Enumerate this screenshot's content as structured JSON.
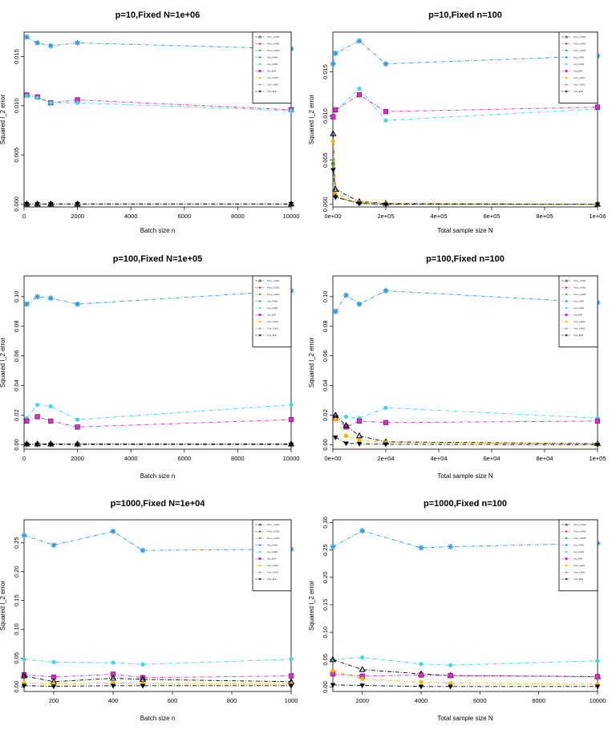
{
  "figure": {
    "legend_labels": [
      "Proxy_GHM1",
      "Proxy_GHM2",
      "Proxy_GHM3",
      "Avg_GHM1",
      "Avg_GHM2",
      "Avg_BHP",
      "Twst_GHM1",
      "Twst_GHM2",
      "Twst_BHP"
    ]
  },
  "chart_data": [
    {
      "type": "line",
      "title": "p=10,Fixed N=1e+06",
      "xlabel": "Batch size n",
      "ylabel": "Squared l_2 error",
      "xlim": [
        0,
        10000
      ],
      "ylim": [
        -0.0003,
        0.0175
      ],
      "xticks": [
        0,
        2000,
        4000,
        6000,
        8000,
        10000
      ],
      "xtick_labels": [
        "0",
        "2000",
        "4000",
        "6000",
        "8000",
        "10000"
      ],
      "yticks": [
        0,
        0.005,
        0.01,
        0.015
      ],
      "ytick_labels": [
        "0.000",
        "0.005",
        "0.010",
        "0.015"
      ],
      "x": [
        100,
        500,
        1000,
        2000,
        10000
      ],
      "series": [
        {
          "name": "Avg_GHM1",
          "color": "#2e9ae0",
          "marker": "star",
          "values": [
            0.017,
            0.0164,
            0.0161,
            0.0164,
            0.0158
          ]
        },
        {
          "name": "Avg_BHP",
          "color": "#d630c8",
          "marker": "box",
          "values": [
            0.0111,
            0.0109,
            0.0103,
            0.0106,
            0.0096
          ]
        },
        {
          "name": "Avg_GHM2",
          "color": "#3ed8e8",
          "marker": "dot",
          "values": [
            0.011,
            0.0108,
            0.0103,
            0.0103,
            0.0095
          ]
        },
        {
          "name": "Proxy_GHM1",
          "color": "#000000",
          "marker": "tri",
          "values": [
            0.0,
            0.0,
            0.0,
            0.0,
            0.0
          ]
        },
        {
          "name": "Twst_BHP",
          "color": "#000000",
          "marker": "tri-down",
          "values": [
            0.0,
            0.0,
            0.0,
            0.0,
            0.0
          ]
        }
      ]
    },
    {
      "type": "line",
      "title": "p=10,Fixed n=100",
      "xlabel": "Total sample size N",
      "ylabel": "Squared l_2 error",
      "xlim": [
        0,
        1000000
      ],
      "ylim": [
        -0.0003,
        0.0195
      ],
      "xticks": [
        0,
        200000,
        400000,
        600000,
        800000,
        1000000
      ],
      "xtick_labels": [
        "0e+00",
        "2e+05",
        "4e+05",
        "6e+05",
        "8e+05",
        "1e+06"
      ],
      "yticks": [
        0,
        0.005,
        0.01,
        0.015
      ],
      "ytick_labels": [
        "0.000",
        "0.005",
        "0.010",
        "0.015"
      ],
      "x": [
        1000,
        10000,
        100000,
        200000,
        1000000
      ],
      "series": [
        {
          "name": "Avg_GHM1",
          "color": "#2e9ae0",
          "marker": "star",
          "values": [
            0.0159,
            0.0171,
            0.0185,
            0.0159,
            0.0168
          ]
        },
        {
          "name": "Avg_GHM2",
          "color": "#3ed8e8",
          "marker": "dot",
          "values": [
            0.0098,
            0.0106,
            0.0131,
            0.0095,
            0.0108
          ]
        },
        {
          "name": "Avg_BHP",
          "color": "#d630c8",
          "marker": "box",
          "values": [
            0.0099,
            0.0107,
            0.0124,
            0.0105,
            0.011
          ]
        },
        {
          "name": "Proxy_GHM1",
          "color": "#000000",
          "marker": "tri",
          "values": [
            0.008,
            0.0017,
            0.0003,
            0.0001,
            0.0
          ]
        },
        {
          "name": "Twst_GHM1",
          "color": "#f2b800",
          "marker": "dot",
          "values": [
            0.0071,
            0.0012,
            0.0002,
            0.0001,
            0.0
          ]
        },
        {
          "name": "Proxy_GHM3",
          "color": "#5c8a2e",
          "marker": "dot",
          "values": [
            0.0046,
            0.0009,
            0.0001,
            0.0,
            0.0
          ]
        },
        {
          "name": "Twst_BHP",
          "color": "#000000",
          "marker": "tri-down",
          "values": [
            0.0039,
            0.0008,
            0.0001,
            0.0,
            0.0
          ]
        }
      ]
    },
    {
      "type": "line",
      "title": "p=100,Fixed N=1e+05",
      "xlabel": "Batch size n",
      "ylabel": "Squared l_2 error",
      "xlim": [
        0,
        10000
      ],
      "ylim": [
        -0.003,
        0.114
      ],
      "xticks": [
        0,
        2000,
        4000,
        6000,
        8000,
        10000
      ],
      "xtick_labels": [
        "0",
        "2000",
        "4000",
        "6000",
        "8000",
        "10000"
      ],
      "yticks": [
        0,
        0.02,
        0.04,
        0.06,
        0.08,
        0.1
      ],
      "ytick_labels": [
        "0.00",
        "0.02",
        "0.04",
        "0.06",
        "0.08",
        "0.10"
      ],
      "x": [
        100,
        500,
        1000,
        2000,
        10000
      ],
      "series": [
        {
          "name": "Avg_GHM1",
          "color": "#2e9ae0",
          "marker": "star",
          "values": [
            0.095,
            0.1,
            0.099,
            0.095,
            0.104
          ]
        },
        {
          "name": "Avg_GHM2",
          "color": "#3ed8e8",
          "marker": "dot",
          "values": [
            0.018,
            0.027,
            0.026,
            0.017,
            0.027
          ]
        },
        {
          "name": "Avg_BHP",
          "color": "#d630c8",
          "marker": "box",
          "values": [
            0.016,
            0.019,
            0.016,
            0.012,
            0.017
          ]
        },
        {
          "name": "Proxy_GHM1",
          "color": "#000000",
          "marker": "tri",
          "values": [
            0.0005,
            0.0005,
            0.0005,
            0.0005,
            0.0005
          ]
        },
        {
          "name": "Twst_BHP",
          "color": "#000000",
          "marker": "tri-down",
          "values": [
            0.0002,
            0.0002,
            0.0002,
            0.0002,
            0.0002
          ]
        }
      ]
    },
    {
      "type": "line",
      "title": "p=100,Fixed n=100",
      "xlabel": "Total sample size N",
      "ylabel": "Squared l_2 error",
      "xlim": [
        0,
        100000
      ],
      "ylim": [
        -0.003,
        0.114
      ],
      "xticks": [
        0,
        20000,
        40000,
        60000,
        80000,
        100000
      ],
      "xtick_labels": [
        "0e+00",
        "2e+04",
        "4e+04",
        "6e+04",
        "8e+04",
        "1e+05"
      ],
      "yticks": [
        0,
        0.02,
        0.04,
        0.06,
        0.08,
        0.1
      ],
      "ytick_labels": [
        "0.00",
        "0.02",
        "0.04",
        "0.06",
        "0.08",
        "0.10"
      ],
      "x": [
        1000,
        5000,
        10000,
        20000,
        100000
      ],
      "series": [
        {
          "name": "Avg_GHM1",
          "color": "#2e9ae0",
          "marker": "star",
          "values": [
            0.09,
            0.101,
            0.095,
            0.104,
            0.096
          ]
        },
        {
          "name": "Avg_GHM2",
          "color": "#3ed8e8",
          "marker": "dot",
          "values": [
            0.02,
            0.019,
            0.018,
            0.025,
            0.018
          ]
        },
        {
          "name": "Avg_BHP",
          "color": "#d630c8",
          "marker": "box",
          "values": [
            0.018,
            0.012,
            0.016,
            0.015,
            0.016
          ]
        },
        {
          "name": "Proxy_GHM1",
          "color": "#000000",
          "marker": "tri",
          "values": [
            0.02,
            0.013,
            0.006,
            0.002,
            0.0008
          ]
        },
        {
          "name": "Twst_GHM1",
          "color": "#f2b800",
          "marker": "dot",
          "values": [
            0.017,
            0.006,
            0.003,
            0.0015,
            0.0005
          ]
        },
        {
          "name": "Twst_BHP",
          "color": "#000000",
          "marker": "tri-down",
          "values": [
            0.005,
            0.001,
            0.0007,
            0.0003,
            0.0001
          ]
        }
      ]
    },
    {
      "type": "line",
      "title": "p=1000,Fixed N=1e+04",
      "xlabel": "Batch size n",
      "ylabel": "Squared l_2 error",
      "xlim": [
        100,
        1000
      ],
      "ylim": [
        -0.008,
        0.29
      ],
      "xticks": [
        200,
        400,
        600,
        800,
        1000
      ],
      "xtick_labels": [
        "200",
        "400",
        "600",
        "800",
        "1000"
      ],
      "yticks": [
        0,
        0.05,
        0.1,
        0.15,
        0.2,
        0.25
      ],
      "ytick_labels": [
        "0.00",
        "0.05",
        "0.10",
        "0.15",
        "0.20",
        "0.25"
      ],
      "x": [
        100,
        200,
        400,
        500,
        1000
      ],
      "series": [
        {
          "name": "Avg_GHM1",
          "color": "#2e9ae0",
          "marker": "star",
          "values": [
            0.263,
            0.246,
            0.27,
            0.237,
            0.239
          ]
        },
        {
          "name": "Avg_GHM2",
          "color": "#3ed8e8",
          "marker": "dot",
          "values": [
            0.048,
            0.043,
            0.042,
            0.039,
            0.048
          ]
        },
        {
          "name": "Avg_BHP",
          "color": "#d630c8",
          "marker": "box",
          "values": [
            0.021,
            0.017,
            0.022,
            0.016,
            0.019
          ]
        },
        {
          "name": "Proxy_GHM1",
          "color": "#000000",
          "marker": "tri",
          "values": [
            0.019,
            0.009,
            0.015,
            0.013,
            0.009
          ]
        },
        {
          "name": "Twst_GHM1",
          "color": "#f2b800",
          "marker": "dot",
          "values": [
            0.007,
            0.005,
            0.007,
            0.006,
            0.005
          ]
        },
        {
          "name": "Twst_BHP",
          "color": "#000000",
          "marker": "tri-down",
          "values": [
            0.002,
            0.001,
            0.002,
            0.002,
            0.002
          ]
        }
      ]
    },
    {
      "type": "line",
      "title": "p=1000,Fixed n=100",
      "xlabel": "Total sample size N",
      "ylabel": "Squared l_2 error",
      "xlim": [
        1000,
        10000
      ],
      "ylim": [
        -0.008,
        0.305
      ],
      "xticks": [
        2000,
        4000,
        6000,
        8000,
        10000
      ],
      "xtick_labels": [
        "2000",
        "4000",
        "6000",
        "8000",
        "10000"
      ],
      "yticks": [
        0,
        0.05,
        0.1,
        0.15,
        0.2,
        0.25,
        0.3
      ],
      "ytick_labels": [
        "0.00",
        "0.05",
        "0.10",
        "0.15",
        "0.20",
        "0.25",
        "0.30"
      ],
      "x": [
        1000,
        2000,
        4000,
        5000,
        10000
      ],
      "series": [
        {
          "name": "Avg_GHM1",
          "color": "#2e9ae0",
          "marker": "star",
          "values": [
            0.256,
            0.285,
            0.254,
            0.256,
            0.262
          ]
        },
        {
          "name": "Avg_GHM2",
          "color": "#3ed8e8",
          "marker": "dot",
          "values": [
            0.05,
            0.054,
            0.042,
            0.04,
            0.048
          ]
        },
        {
          "name": "Proxy_GHM1",
          "color": "#000000",
          "marker": "tri",
          "values": [
            0.05,
            0.032,
            0.024,
            0.021,
            0.019
          ]
        },
        {
          "name": "Avg_BHP",
          "color": "#d630c8",
          "marker": "box",
          "values": [
            0.024,
            0.02,
            0.022,
            0.021,
            0.019
          ]
        },
        {
          "name": "Twst_GHM1",
          "color": "#f2b800",
          "marker": "dot",
          "values": [
            0.03,
            0.015,
            0.009,
            0.007,
            0.005
          ]
        },
        {
          "name": "Twst_BHP",
          "color": "#000000",
          "marker": "tri-down",
          "values": [
            0.004,
            0.003,
            0.001,
            0.001,
            0.001
          ]
        }
      ]
    }
  ]
}
